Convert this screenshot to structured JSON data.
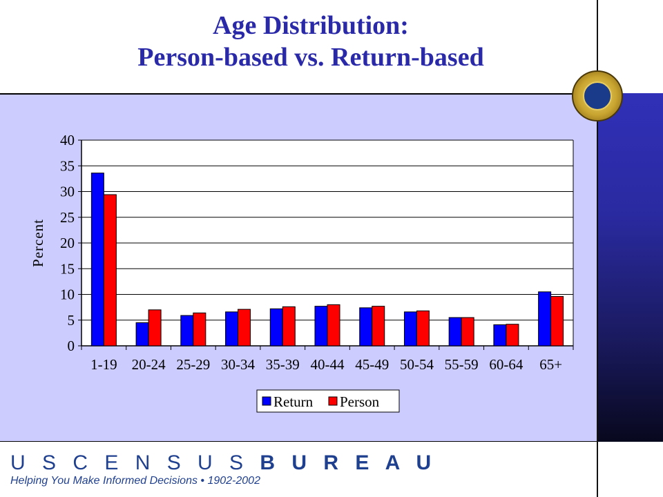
{
  "title": {
    "line1": "Age Distribution:",
    "line2": "Person-based vs. Return-based"
  },
  "footer": {
    "agency_part1": "U S C E N S U S ",
    "agency_part2": "B U R E A U",
    "tagline": "Helping You Make Informed Decisions • 1902-2002"
  },
  "logo": {
    "icon": "department-of-commerce-seal-icon"
  },
  "chart_data": {
    "type": "bar",
    "ylabel": "Percent",
    "xlabel": "",
    "ylim": [
      0,
      40
    ],
    "yticks": [
      0,
      5,
      10,
      15,
      20,
      25,
      30,
      35,
      40
    ],
    "grid": true,
    "legend_position": "bottom",
    "categories": [
      "1-19",
      "20-24",
      "25-29",
      "30-34",
      "35-39",
      "40-44",
      "45-49",
      "50-54",
      "55-59",
      "60-64",
      "65+"
    ],
    "series": [
      {
        "name": "Return",
        "color": "#0000ff",
        "values": [
          33.6,
          4.5,
          5.9,
          6.6,
          7.2,
          7.7,
          7.4,
          6.6,
          5.5,
          4.1,
          10.5
        ]
      },
      {
        "name": "Person",
        "color": "#ff0000",
        "values": [
          29.4,
          7.0,
          6.4,
          7.1,
          7.6,
          8.0,
          7.7,
          6.8,
          5.5,
          4.2,
          9.6
        ]
      }
    ]
  }
}
